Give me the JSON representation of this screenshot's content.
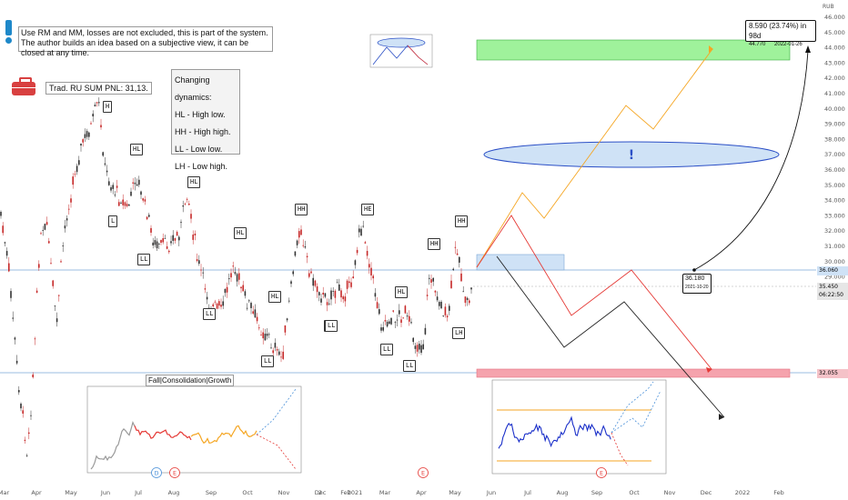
{
  "chart_data": {
    "type": "candlestick",
    "title": "",
    "currency": "RUB",
    "ylim": [
      27.8,
      46.7
    ],
    "y_ticks": [
      "46.000",
      "45.000",
      "44.000",
      "43.000",
      "42.000",
      "41.000",
      "40.000",
      "39.000",
      "38.000",
      "37.000",
      "36.000",
      "35.000",
      "34.000",
      "33.000",
      "32.000",
      "31.000",
      "30.000",
      "29.000",
      "28.000"
    ],
    "x_ticks": [
      "Mar",
      "Apr",
      "May",
      "Jun",
      "Jul",
      "Aug",
      "Sep",
      "Oct",
      "Nov",
      "Dec",
      "2",
      "Feb",
      "2021",
      "Mar",
      "Apr",
      "May",
      "Jun",
      "Jul",
      "Aug",
      "Sep",
      "Oct",
      "Nov",
      "Dec",
      "2022",
      "Feb"
    ],
    "price_tags": {
      "upper_level": "36.060",
      "last_price": "35.450",
      "countdown": "06:22:50",
      "lower_level": "32.055"
    },
    "labels": [
      {
        "text": "H"
      },
      {
        "text": "HL"
      },
      {
        "text": "L"
      },
      {
        "text": "HL"
      },
      {
        "text": "LL"
      },
      {
        "text": "HL"
      },
      {
        "text": "LL"
      },
      {
        "text": "HL"
      },
      {
        "text": "HH"
      },
      {
        "text": "LL"
      },
      {
        "text": "LH"
      },
      {
        "text": "HE"
      },
      {
        "text": "LL"
      },
      {
        "text": "HL"
      },
      {
        "text": "LL"
      },
      {
        "text": "HH"
      },
      {
        "text": "HH"
      },
      {
        "text": "LH"
      },
      {
        "text": "LL"
      }
    ],
    "events": [
      {
        "text": "D"
      },
      {
        "text": "E"
      },
      {
        "text": "E"
      },
      {
        "text": "E"
      }
    ]
  },
  "notes": {
    "line1": "Use RM and MM, losses are not excluded, this is part of the system.",
    "line2": "The author builds an idea based on a subjective view, it can be closed at any time."
  },
  "pnl": "Trad. RU SUM PNL: 31,13.",
  "dynamics": {
    "title": "Changing dynamics:",
    "items": [
      "HL - High low.",
      "HH - High high.",
      "LL - Low low.",
      "LH - Low high."
    ]
  },
  "inset_title": "Fall|Consolidation|Growth",
  "measure": {
    "line1": "8.590 (23.74%) in 98d",
    "line2a": "44.770",
    "line2b": "2022-01-26"
  },
  "point": {
    "value": "36.180",
    "date": "2021-10-20"
  },
  "alert_mark": "!",
  "colors": {
    "up": "#333333",
    "down": "#c62828",
    "orange": "#f5a623",
    "red": "#e53935",
    "blue_zone": "#cfe2f6",
    "green_zone": "#8ef08a",
    "red_zone": "#f5a3ad",
    "blue_line": "#4a90d9"
  }
}
